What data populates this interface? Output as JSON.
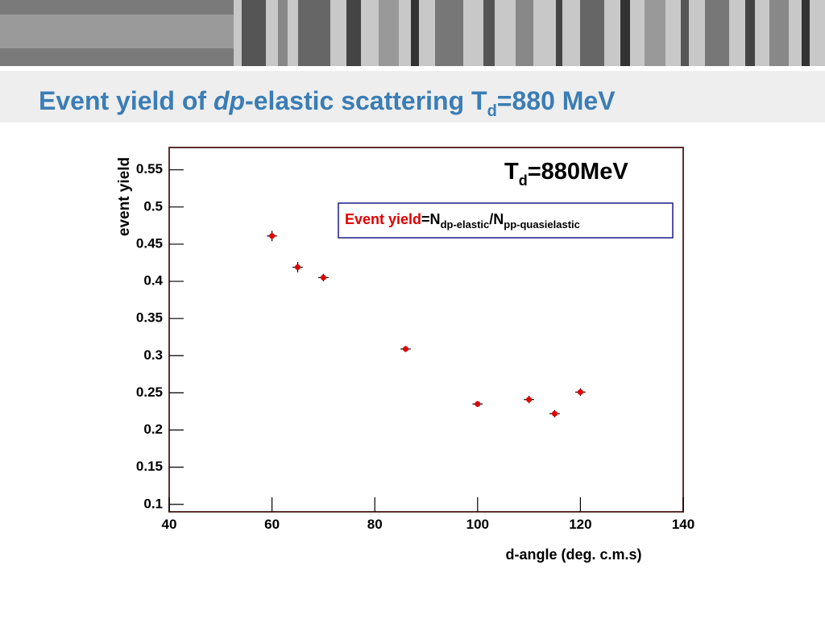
{
  "header": {
    "title": {
      "prefix": "Event yield of ",
      "italic": "dp",
      "middle": "-elastic scattering T",
      "sub": "d",
      "suffix": "=880 MeV"
    }
  },
  "chart_data": {
    "type": "scatter",
    "x": [
      60,
      65,
      70,
      86,
      100,
      110,
      115,
      120
    ],
    "values": [
      0.461,
      0.419,
      0.405,
      0.309,
      0.235,
      0.241,
      0.222,
      0.251
    ],
    "yerr": [
      0.007,
      0.007,
      0.005,
      0.004,
      0.004,
      0.005,
      0.005,
      0.005
    ],
    "xerr": [
      1,
      1,
      1,
      1,
      1,
      1,
      1,
      1
    ],
    "color": "#e00000",
    "xlim": [
      40,
      140
    ],
    "xticks": [
      40,
      60,
      80,
      100,
      120,
      140
    ],
    "ylim": [
      0.09,
      0.58
    ],
    "yticks": [
      0.1,
      0.15,
      0.2,
      0.25,
      0.3,
      0.35,
      0.4,
      0.45,
      0.5,
      0.55
    ],
    "x_label": "d-angle (deg. c.m.s)",
    "y_label": "event yield",
    "annotation": {
      "main": "T",
      "sub": "d",
      "rest": "=880MeV"
    },
    "legend": {
      "red": "Event yield",
      "eq": "=N",
      "sub1": "dp-elastic",
      "slash": "/N",
      "sub2": "pp-quasielastic"
    }
  }
}
